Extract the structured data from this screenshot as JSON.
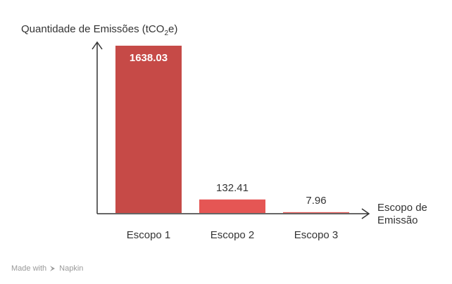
{
  "chart_data": {
    "type": "bar",
    "ylabel_main": "Quantidade de Emissões (tCO",
    "ylabel_sub": "2",
    "ylabel_end": "e)",
    "xlabel_line1": "Escopo de",
    "xlabel_line2": "Emissão",
    "categories": [
      "Escopo 1",
      "Escopo 2",
      "Escopo 3"
    ],
    "values": [
      1638.03,
      132.41,
      7.96
    ],
    "value_labels": [
      "1638.03",
      "132.41",
      "7.96"
    ],
    "colors": [
      "#c64a47",
      "#e55654",
      "#e55654"
    ],
    "ylim": [
      0,
      1638.03
    ],
    "grid": false
  },
  "watermark": {
    "made_with": "Made with",
    "brand": "Napkin"
  }
}
